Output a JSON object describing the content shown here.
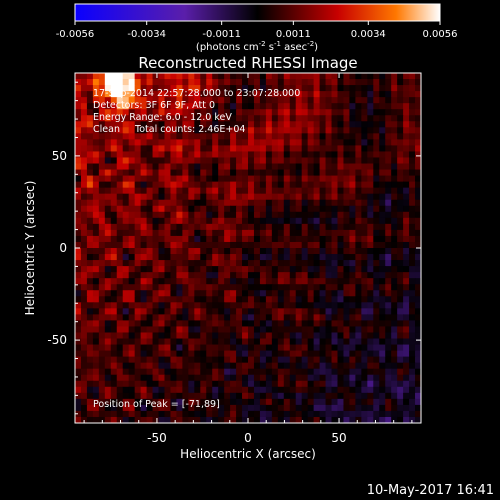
{
  "chart_data": {
    "type": "heatmap",
    "title": "Reconstructed RHESSI Image",
    "xlabel": "Heliocentric X (arcsec)",
    "ylabel": "Heliocentric Y (arcsec)",
    "xlim": [
      -95,
      95
    ],
    "ylim": [
      -95,
      95
    ],
    "xticks": [
      "-50",
      "0",
      "50"
    ],
    "xtick_values": [
      -50,
      0,
      50
    ],
    "yticks": [
      "50",
      "0",
      "-50"
    ],
    "ytick_values": [
      50,
      0,
      -50
    ],
    "colorbar": {
      "ticks": [
        "-0.0056",
        "-0.0034",
        "-0.0011",
        "0.0011",
        "0.0034",
        "0.0056"
      ],
      "tick_values": [
        -0.0056,
        -0.0034,
        -0.0011,
        0.0011,
        0.0034,
        0.0056
      ],
      "range": [
        -0.0056,
        0.0056
      ],
      "unit_prefix": "(photons cm",
      "unit_sup1": "-2",
      "unit_mid": " s",
      "unit_sup2": "-1",
      "unit_mid2": " asec",
      "unit_sup3": "-2",
      "unit_suffix": ")"
    },
    "annotations": [
      "17-Sep-2014 22:57:28.000 to 23:07:28.000",
      "Detectors: 3F 6F 9F, Att 0",
      "Energy Range: 6.0 - 12.0 keV",
      "Clean     Total counts: 2.46E+04"
    ],
    "peak_label": "Position of Peak = [-71,89]",
    "peak": {
      "x": -71,
      "y": 89
    },
    "colors": {
      "negative": "#0a00ff",
      "negative_mid": "#5a1eaa",
      "zero": "#000000",
      "positive_mid": "#c80000",
      "positive_high": "#ff7800",
      "max": "#ffffff"
    }
  },
  "footer": {
    "timestamp": "10-May-2017 16:41"
  }
}
